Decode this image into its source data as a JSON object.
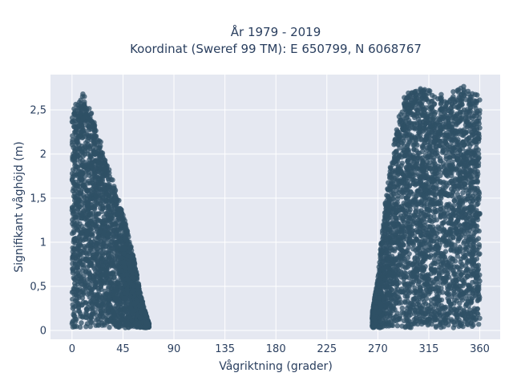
{
  "chart_data": {
    "type": "scatter",
    "title_lines": [
      "År 1979 - 2019",
      "Koordinat (Sweref 99 TM): E 650799, N 6068767"
    ],
    "xlabel": "Vågriktning (grader)",
    "ylabel": "Signifikant våghöjd (m)",
    "xlim": [
      -19,
      378
    ],
    "ylim": [
      -0.1,
      2.9
    ],
    "x_ticks": [
      0,
      45,
      90,
      135,
      180,
      225,
      270,
      315,
      360
    ],
    "x_tick_labels": [
      "0",
      "45",
      "90",
      "135",
      "180",
      "225",
      "270",
      "315",
      "360"
    ],
    "y_ticks": [
      0,
      0.5,
      1,
      1.5,
      2,
      2.5
    ],
    "y_tick_labels": [
      "0",
      "0,5",
      "1",
      "1,5",
      "2",
      "2,5"
    ],
    "grid": true,
    "marker_color": "#2f5066",
    "plot_background": "#e5e8f1",
    "clusters": [
      {
        "x_range": [
          0,
          68
        ],
        "y_min": 0.03,
        "upper_envelope": [
          [
            0,
            2.55
          ],
          [
            5,
            2.65
          ],
          [
            10,
            2.75
          ],
          [
            15,
            2.55
          ],
          [
            20,
            2.4
          ],
          [
            25,
            2.2
          ],
          [
            30,
            1.95
          ],
          [
            35,
            1.75
          ],
          [
            40,
            1.55
          ],
          [
            45,
            1.35
          ],
          [
            50,
            1.1
          ],
          [
            55,
            0.8
          ],
          [
            60,
            0.45
          ],
          [
            65,
            0.2
          ],
          [
            68,
            0.08
          ]
        ]
      },
      {
        "x_range": [
          265,
          360
        ],
        "y_min": 0.03,
        "upper_envelope": [
          [
            265,
            0.2
          ],
          [
            270,
            0.6
          ],
          [
            275,
            1.3
          ],
          [
            280,
            1.8
          ],
          [
            285,
            2.2
          ],
          [
            290,
            2.55
          ],
          [
            295,
            2.7
          ],
          [
            300,
            2.75
          ],
          [
            310,
            2.8
          ],
          [
            320,
            2.75
          ],
          [
            330,
            2.65
          ],
          [
            340,
            2.8
          ],
          [
            350,
            2.75
          ],
          [
            355,
            2.7
          ],
          [
            360,
            2.65
          ]
        ]
      }
    ]
  }
}
